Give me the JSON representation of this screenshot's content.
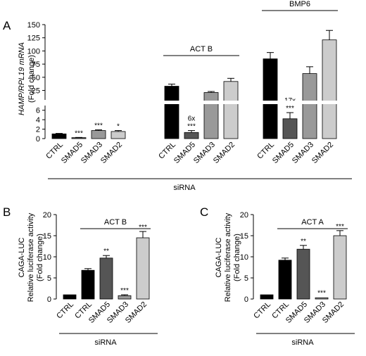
{
  "figure": {
    "panels": [
      "A",
      "B",
      "C"
    ]
  },
  "chart_data": [
    {
      "type": "bar",
      "panel": "A",
      "ylabel": [
        "HAMP/RPL19 mRNA",
        "(Fold change)"
      ],
      "xlabel": "siRNA",
      "yaxis_break": {
        "lower_max": 7,
        "upper_min": 7
      },
      "lower_ticks": [
        0,
        2,
        4,
        6
      ],
      "upper_ticks": [
        25,
        50,
        75,
        100,
        125,
        150
      ],
      "groups": [
        {
          "label": "",
          "categories": [
            "CTRL",
            "SMAD5",
            "SMAD3",
            "SMAD2"
          ],
          "values": [
            1.0,
            0.2,
            1.7,
            1.5
          ],
          "errors": [
            0.1,
            0.05,
            0.15,
            0.2
          ],
          "significance": [
            "",
            "***",
            "***",
            "*"
          ],
          "fold_labels": [
            "",
            "",
            "",
            ""
          ]
        },
        {
          "label": "ACT B",
          "categories": [
            "CTRL",
            "SMAD5",
            "SMAD3",
            "SMAD2"
          ],
          "values": [
            33,
            1.3,
            21,
            42
          ],
          "errors": [
            4,
            0.4,
            2,
            6
          ],
          "significance": [
            "",
            "***",
            "",
            ""
          ],
          "fold_labels": [
            "",
            "6x",
            "",
            ""
          ]
        },
        {
          "label": "BMP6",
          "categories": [
            "CTRL",
            "SMAD5",
            "SMAD3",
            "SMAD2"
          ],
          "values": [
            85,
            4.2,
            57,
            121
          ],
          "errors": [
            12,
            1.3,
            13,
            18
          ],
          "significance": [
            "",
            "***",
            "",
            ""
          ],
          "fold_labels": [
            "",
            "17x",
            "",
            ""
          ]
        }
      ],
      "colors": [
        "#000000",
        "#555555",
        "#999999",
        "#cccccc"
      ]
    },
    {
      "type": "bar",
      "panel": "B",
      "ylabel": [
        "CAGA-LUC",
        "Relative luciferase activity",
        "(Fold change)"
      ],
      "xlabel": "siRNA",
      "treatment": "ACT B",
      "ylim": [
        0,
        20
      ],
      "ticks": [
        0,
        5,
        10,
        15,
        20
      ],
      "categories": [
        "CTRL",
        "CTRL",
        "SMAD5",
        "SMAD3",
        "SMAD2"
      ],
      "values": [
        1.0,
        6.8,
        9.7,
        0.8,
        14.5
      ],
      "errors": [
        0.05,
        0.4,
        0.6,
        0.2,
        1.5
      ],
      "significance": [
        "",
        "",
        "**",
        "***",
        "***"
      ],
      "colors": [
        "#000000",
        "#000000",
        "#555555",
        "#999999",
        "#cccccc"
      ]
    },
    {
      "type": "bar",
      "panel": "C",
      "ylabel": [
        "CAGA-LUC",
        "Relative luciferase activity",
        "(Fold change)"
      ],
      "xlabel": "siRNA",
      "treatment": "ACT A",
      "ylim": [
        0,
        20
      ],
      "ticks": [
        0,
        5,
        10,
        15,
        20
      ],
      "categories": [
        "CTRL",
        "CTRL",
        "SMAD5",
        "SMAD3",
        "SMAD2"
      ],
      "values": [
        1.0,
        9.2,
        11.8,
        0.3,
        15.0
      ],
      "errors": [
        0.05,
        0.5,
        0.9,
        0.1,
        1.2
      ],
      "significance": [
        "",
        "",
        "**",
        "***",
        "***"
      ],
      "colors": [
        "#000000",
        "#000000",
        "#555555",
        "#999999",
        "#cccccc"
      ]
    }
  ]
}
